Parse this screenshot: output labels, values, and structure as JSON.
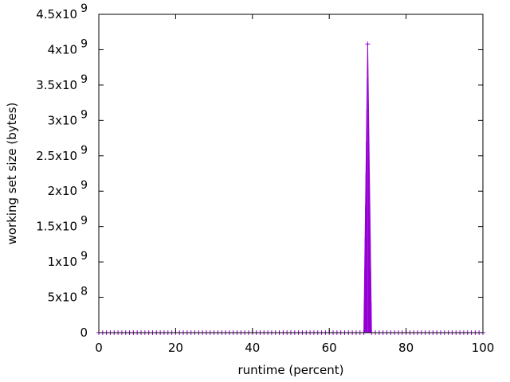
{
  "chart_data": {
    "type": "line",
    "xlabel": "runtime (percent)",
    "ylabel": "working set size (bytes)",
    "xlim": [
      0,
      100
    ],
    "ylim": [
      0,
      4500000000
    ],
    "x_ticks": [
      0,
      20,
      40,
      60,
      80,
      100
    ],
    "x_tick_labels": [
      "0",
      "20",
      "40",
      "60",
      "80",
      "100"
    ],
    "y_ticks": [
      0,
      500000000,
      1000000000,
      1500000000,
      2000000000,
      2500000000,
      3000000000,
      3500000000,
      4000000000,
      4500000000
    ],
    "y_tick_labels": [
      {
        "mantissa": "0",
        "exponent": ""
      },
      {
        "mantissa": "5x10",
        "exponent": "8"
      },
      {
        "mantissa": "1x10",
        "exponent": "9"
      },
      {
        "mantissa": "1.5x10",
        "exponent": "9"
      },
      {
        "mantissa": "2x10",
        "exponent": "9"
      },
      {
        "mantissa": "2.5x10",
        "exponent": "9"
      },
      {
        "mantissa": "3x10",
        "exponent": "9"
      },
      {
        "mantissa": "3.5x10",
        "exponent": "9"
      },
      {
        "mantissa": "4x10",
        "exponent": "9"
      },
      {
        "mantissa": "4.5x10",
        "exponent": "9"
      }
    ],
    "grid": false,
    "legend": "none",
    "series": [
      {
        "color": "#9400d3",
        "marker": "plus",
        "x": [
          0,
          1,
          2,
          3,
          4,
          5,
          6,
          7,
          8,
          9,
          10,
          11,
          12,
          13,
          14,
          15,
          16,
          17,
          18,
          19,
          20,
          21,
          22,
          23,
          24,
          25,
          26,
          27,
          28,
          29,
          30,
          31,
          32,
          33,
          34,
          35,
          36,
          37,
          38,
          39,
          40,
          41,
          42,
          43,
          44,
          45,
          46,
          47,
          48,
          49,
          50,
          51,
          52,
          53,
          54,
          55,
          56,
          57,
          58,
          59,
          60,
          61,
          62,
          63,
          64,
          65,
          66,
          67,
          68,
          69,
          70,
          71,
          72,
          73,
          74,
          75,
          76,
          77,
          78,
          79,
          80,
          81,
          82,
          83,
          84,
          85,
          86,
          87,
          88,
          89,
          90,
          91,
          92,
          93,
          94,
          95,
          96,
          97,
          98,
          99,
          100
        ],
        "y": [
          0,
          0,
          0,
          0,
          0,
          0,
          0,
          0,
          0,
          0,
          0,
          0,
          0,
          0,
          0,
          0,
          0,
          0,
          0,
          0,
          0,
          0,
          0,
          0,
          0,
          0,
          0,
          0,
          0,
          0,
          0,
          0,
          0,
          0,
          0,
          0,
          0,
          0,
          0,
          0,
          0,
          0,
          0,
          0,
          0,
          0,
          0,
          0,
          0,
          0,
          0,
          0,
          0,
          0,
          0,
          0,
          0,
          0,
          0,
          0,
          0,
          0,
          0,
          0,
          0,
          0,
          0,
          0,
          0,
          0,
          4080000000,
          0,
          0,
          0,
          0,
          0,
          0,
          0,
          0,
          0,
          0,
          0,
          0,
          0,
          0,
          0,
          0,
          0,
          0,
          0,
          0,
          0,
          0,
          0,
          0,
          0,
          0,
          0,
          0,
          0,
          0
        ]
      }
    ]
  }
}
